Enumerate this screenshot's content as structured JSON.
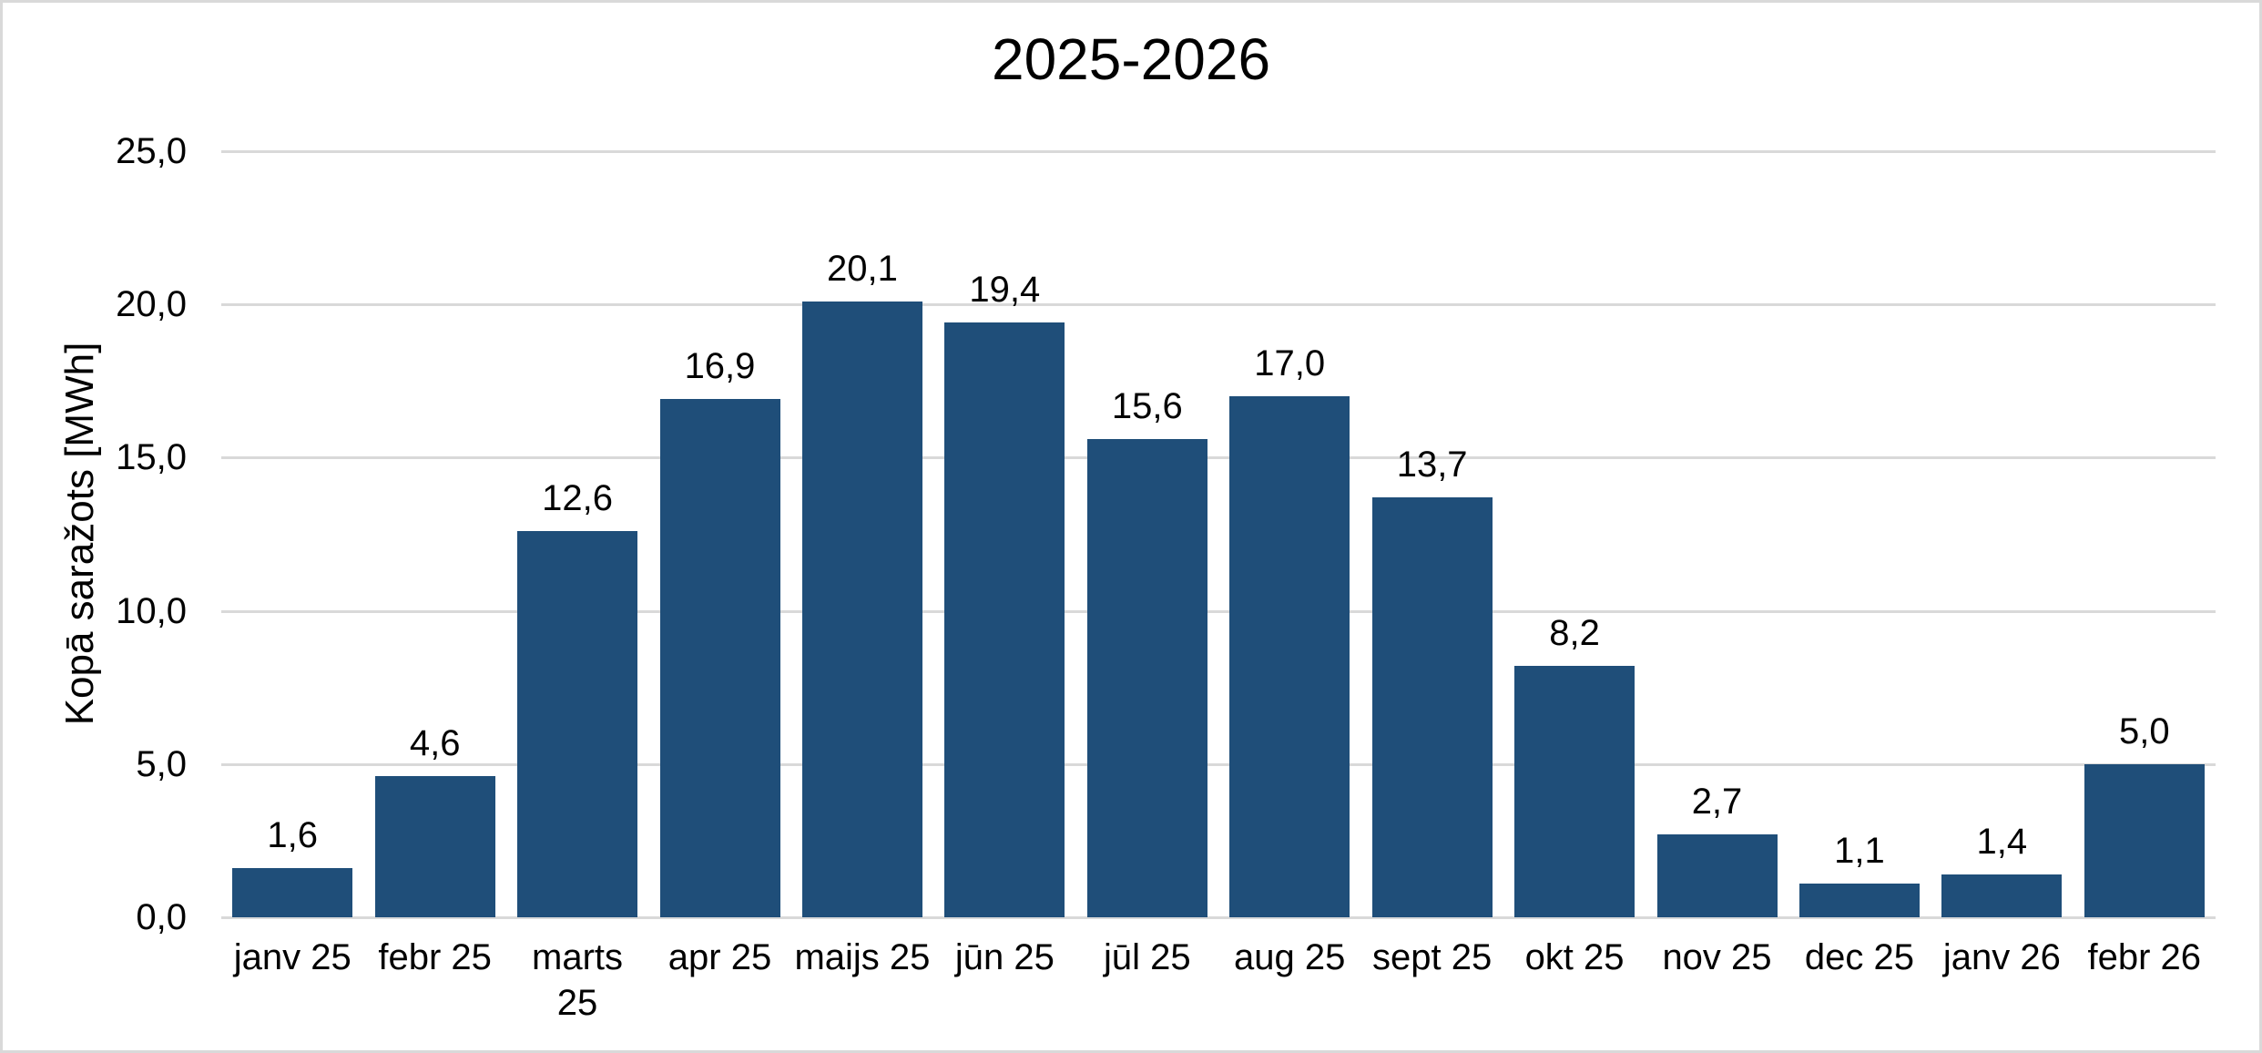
{
  "page": {
    "background": "#ffffff",
    "border_color": "#d9d9d9"
  },
  "chart_data": {
    "type": "bar",
    "title": "2025-2026",
    "xlabel": "",
    "ylabel": "Kopā saražots [MWh]",
    "categories": [
      "janv 25",
      "febr 25",
      "marts 25",
      "apr 25",
      "maijs 25",
      "jūn 25",
      "jūl 25",
      "aug 25",
      "sept 25",
      "okt 25",
      "nov 25",
      "dec 25",
      "janv 26",
      "febr 26"
    ],
    "x_tick_labels": [
      "janv 25",
      "febr 25",
      "marts\n25",
      "apr 25",
      "maijs 25",
      "jūn 25",
      "jūl 25",
      "aug 25",
      "sept 25",
      "okt 25",
      "nov 25",
      "dec 25",
      "janv 26",
      "febr 26"
    ],
    "values": [
      1.6,
      4.6,
      12.6,
      16.9,
      20.1,
      19.4,
      15.6,
      17.0,
      13.7,
      8.2,
      2.7,
      1.1,
      1.4,
      5.0
    ],
    "data_labels": [
      "1,6",
      "4,6",
      "12,6",
      "16,9",
      "20,1",
      "19,4",
      "15,6",
      "17,0",
      "13,7",
      "8,2",
      "2,7",
      "1,1",
      "1,4",
      "5,0"
    ],
    "y_ticks": [
      "25,0",
      "20,0",
      "15,0",
      "10,0",
      "5,0",
      "0,0"
    ],
    "ylim": [
      0,
      25
    ],
    "grid": true,
    "legend": false,
    "bar_color": "#1f4e79",
    "gridline_color": "#d9d9d9",
    "axis_line_color": "#d9d9d9",
    "text_color": "#000000"
  }
}
